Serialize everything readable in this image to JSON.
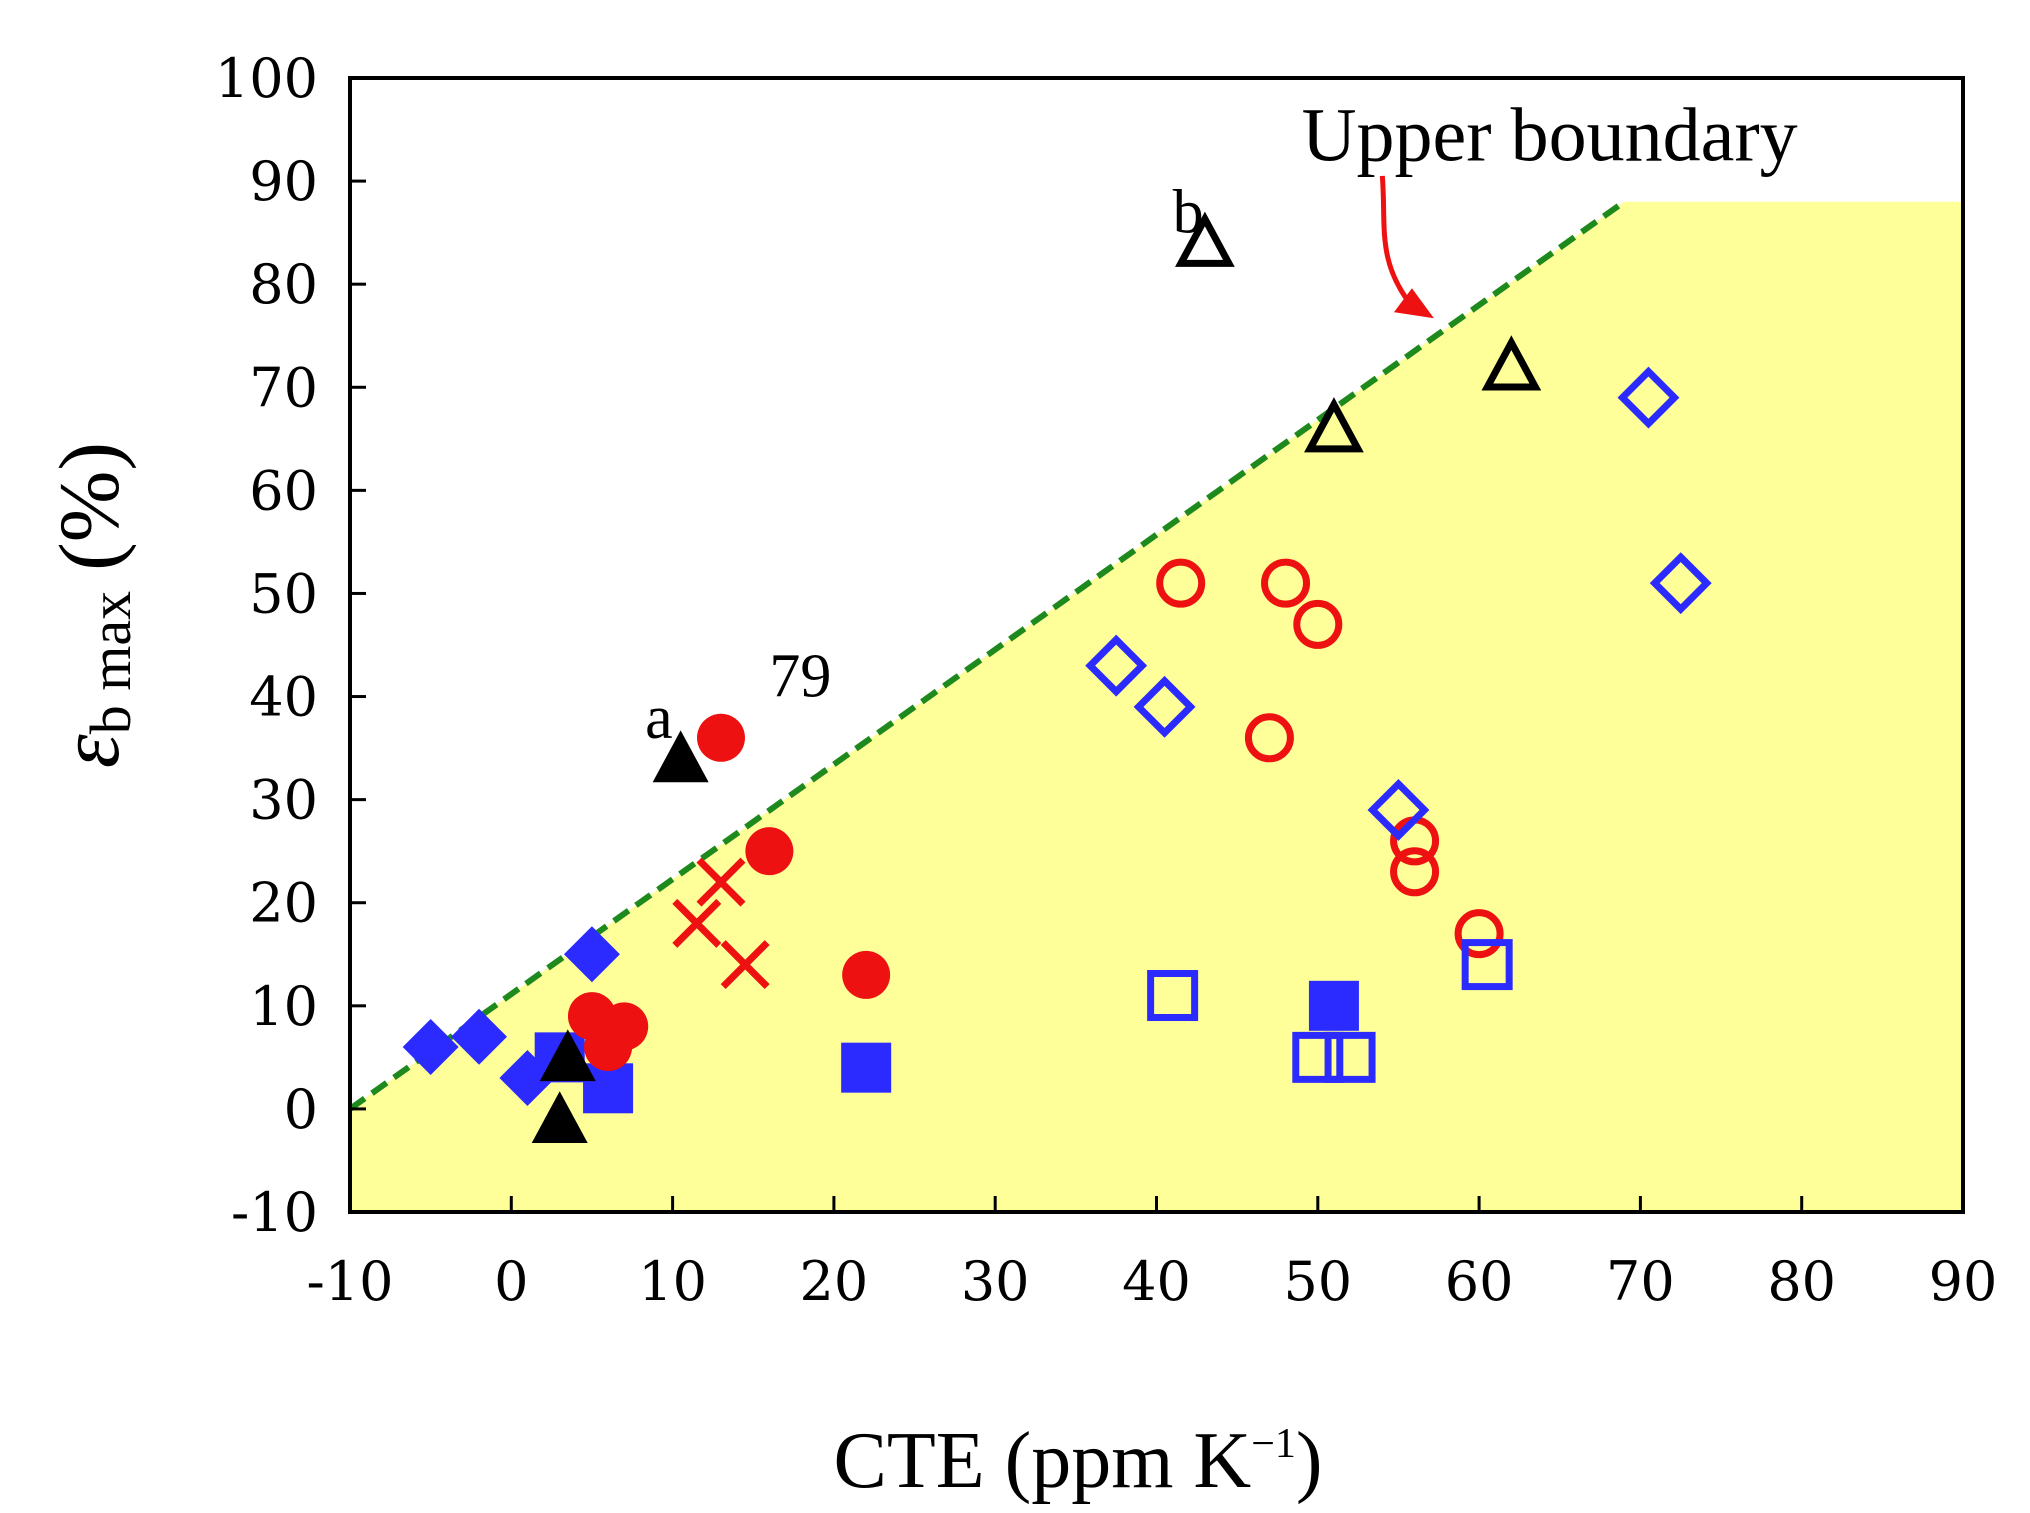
{
  "chart_data": {
    "type": "scatter",
    "title": "",
    "xlabel": "CTE (ppm K⁻¹)",
    "xlabel_parts": {
      "main": "CTE (ppm K",
      "sup": "−1",
      "close": ")"
    },
    "ylabel": "εb max (%)",
    "ylabel_parts": {
      "symbol": "ε",
      "sub": "b max",
      "unit": "(%)"
    },
    "xlim": [
      -10,
      90
    ],
    "ylim": [
      -10,
      100
    ],
    "x_ticks": [
      "-10",
      "0",
      "10",
      "20",
      "30",
      "40",
      "50",
      "60",
      "70",
      "80",
      "90"
    ],
    "y_ticks": [
      "100",
      "90",
      "80",
      "70",
      "60",
      "50",
      "40",
      "30",
      "20",
      "10",
      "0",
      "-10"
    ],
    "grid": false,
    "colors": {
      "allowed_region": "#ffff99",
      "boundary_line": "#1e8a1e",
      "arrow": "#ee1111",
      "red": "#ee1111",
      "blue": "#2b2bff",
      "black": "#000000"
    },
    "region": {
      "label": "region below upper boundary (shaded)",
      "polygon": [
        [
          -10,
          -10
        ],
        [
          -10,
          0
        ],
        [
          69,
          88
        ],
        [
          90,
          88
        ],
        [
          90,
          -10
        ]
      ]
    },
    "upper_boundary": {
      "label": "Upper boundary",
      "x": [
        -10,
        69
      ],
      "y": [
        0,
        88
      ]
    },
    "series": [
      {
        "name": "filled blue diamonds",
        "marker": "diamond",
        "filled": true,
        "color": "#2b2bff",
        "points": [
          [
            -5,
            6
          ],
          [
            -2,
            7
          ],
          [
            1,
            3
          ],
          [
            5,
            15
          ]
        ]
      },
      {
        "name": "filled blue squares",
        "marker": "square",
        "filled": true,
        "color": "#2b2bff",
        "points": [
          [
            3,
            5
          ],
          [
            6,
            2
          ],
          [
            22,
            4
          ],
          [
            51,
            10
          ]
        ]
      },
      {
        "name": "filled red circles",
        "marker": "circle",
        "filled": true,
        "color": "#ee1111",
        "points": [
          [
            5,
            9
          ],
          [
            6,
            6
          ],
          [
            7,
            8
          ],
          [
            13,
            36
          ],
          [
            16,
            25
          ],
          [
            22,
            13
          ]
        ]
      },
      {
        "name": "filled black triangles",
        "marker": "triangle",
        "filled": true,
        "color": "#000000",
        "points": [
          [
            3,
            -1
          ],
          [
            3.5,
            5
          ],
          [
            10.5,
            34
          ]
        ]
      },
      {
        "name": "red crosses",
        "marker": "x",
        "filled": false,
        "color": "#ee1111",
        "points": [
          [
            11.5,
            18
          ],
          [
            13,
            22
          ],
          [
            14.5,
            14
          ]
        ]
      },
      {
        "name": "open red circles",
        "marker": "circle",
        "filled": false,
        "color": "#ee1111",
        "points": [
          [
            41.5,
            51
          ],
          [
            47,
            36
          ],
          [
            48,
            51
          ],
          [
            50,
            47
          ],
          [
            56,
            23
          ],
          [
            56,
            26
          ],
          [
            60,
            17
          ]
        ]
      },
      {
        "name": "open blue diamonds",
        "marker": "diamond",
        "filled": false,
        "color": "#2b2bff",
        "points": [
          [
            37.5,
            43
          ],
          [
            40.5,
            39
          ],
          [
            55,
            29
          ],
          [
            70.5,
            69
          ],
          [
            72.5,
            51
          ]
        ]
      },
      {
        "name": "open blue squares",
        "marker": "square",
        "filled": false,
        "color": "#2b2bff",
        "points": [
          [
            41,
            11
          ],
          [
            50,
            5
          ],
          [
            52,
            5
          ],
          [
            60.5,
            14
          ]
        ]
      },
      {
        "name": "open black triangles",
        "marker": "triangle",
        "filled": false,
        "color": "#000000",
        "points": [
          [
            43,
            84
          ],
          [
            51,
            66
          ],
          [
            62,
            72
          ]
        ]
      }
    ],
    "annotations": [
      {
        "text": "a",
        "x": 8.3,
        "y": 36
      },
      {
        "text": "79",
        "x": 16,
        "y": 40
      },
      {
        "text": "b",
        "x": 41,
        "y": 85
      },
      {
        "text": "Upper boundary",
        "x": 49,
        "y": 92
      }
    ]
  }
}
